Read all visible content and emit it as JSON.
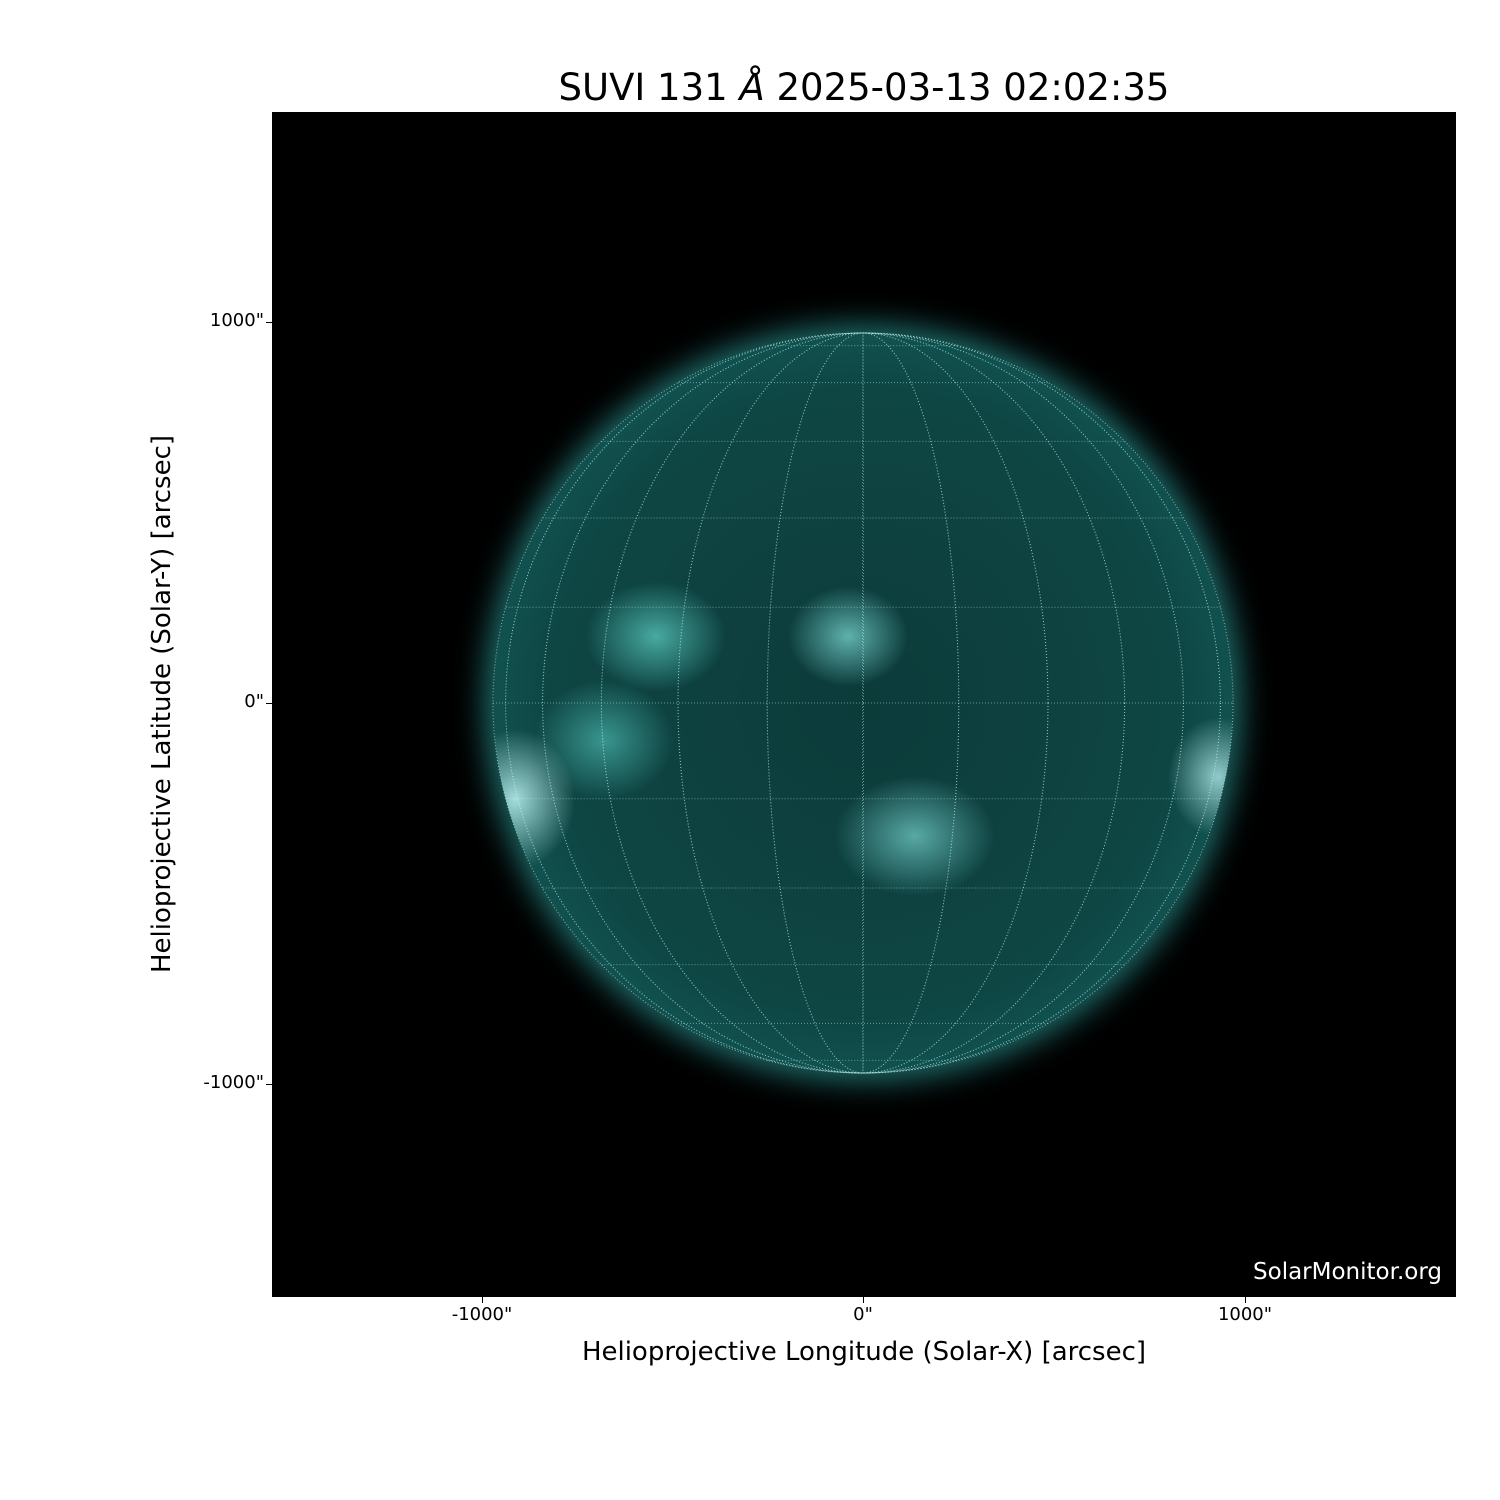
{
  "title": {
    "prefix": "SUVI 131 ",
    "unit": "Å",
    "suffix": " 2025-03-13 02:02:35"
  },
  "axes": {
    "xlabel": "Helioprojective Longitude (Solar-X) [arcsec]",
    "ylabel": "Helioprojective Latitude (Solar-Y) [arcsec]",
    "xticks": [
      "-1000\"",
      "0\"",
      "1000\""
    ],
    "yticks": [
      "1000\"",
      "0\"",
      "-1000\""
    ],
    "xlim": [
      -1550,
      1550
    ],
    "ylim": [
      -1550,
      1550
    ]
  },
  "image": {
    "colormap_color": "#3fe0d8",
    "background": "#000000",
    "grid": "heliographic, 15° spacing"
  },
  "watermark": "SolarMonitor.org"
}
